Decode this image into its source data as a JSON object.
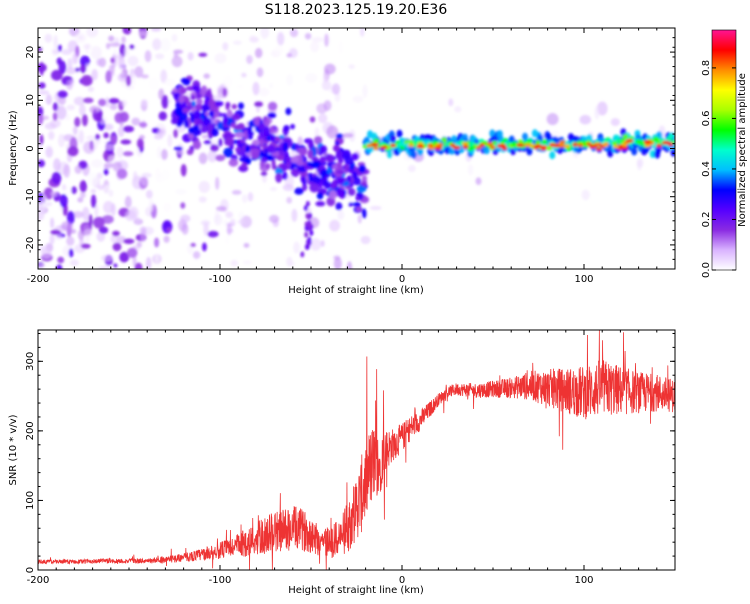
{
  "title": "S118.2023.125.19.20.E36",
  "chart_data": [
    {
      "type": "heatmap",
      "title": "S118.2023.125.19.20.E36",
      "xlabel": "Height of straight line (km)",
      "ylabel": "Frequency (Hz)",
      "xlim": [
        -200,
        150
      ],
      "ylim": [
        -25,
        25
      ],
      "xticks": [
        -200,
        -100,
        0,
        100
      ],
      "yticks": [
        -20,
        -10,
        0,
        10,
        20
      ],
      "colorbar": {
        "label": "Normalized spectral amplitude",
        "range": [
          0,
          0.95
        ],
        "ticks": [
          0,
          0.2,
          0.4,
          0.6,
          0.8
        ],
        "colormap": [
          "#ffffff",
          "#d9b3ff",
          "#8a2be2",
          "#5500ff",
          "#0000ff",
          "#00bfff",
          "#00ffcc",
          "#00ff00",
          "#aaff00",
          "#ffff00",
          "#ff8c00",
          "#ff0000",
          "#ff1493"
        ]
      },
      "description_band": "Dominant frequency near 0 Hz; noisy broadband speckle for heights below about -100 km; descending blob band from about +8 Hz at -115 km to -7 Hz at -30 km; narrow band near 0 Hz from -20 km to 150 km with amplitude peaks above 0.8"
    },
    {
      "type": "line",
      "xlabel": "Height of straight line (km)",
      "ylabel": "SNR (10 * v/v)",
      "xlim": [
        -200,
        150
      ],
      "ylim": [
        0,
        345
      ],
      "xticks": [
        -200,
        -100,
        0,
        100
      ],
      "yticks": [
        0,
        100,
        200,
        300
      ],
      "color": "#ee3333",
      "series": [
        {
          "x": [
            -200,
            -180,
            -160,
            -140,
            -130,
            -120,
            -110,
            -100,
            -90,
            -80,
            -70,
            -60,
            -55,
            -50,
            -45,
            -40,
            -35,
            -30,
            -25,
            -22,
            -18,
            -15,
            -12,
            -10,
            -5,
            0,
            5,
            10,
            15,
            20,
            25,
            30,
            40,
            50,
            60,
            70,
            80,
            90,
            100,
            110,
            120,
            130,
            140,
            150
          ],
          "values": [
            12,
            12,
            13,
            13,
            15,
            18,
            22,
            28,
            35,
            45,
            55,
            60,
            58,
            52,
            42,
            40,
            45,
            60,
            90,
            110,
            140,
            160,
            150,
            170,
            180,
            190,
            205,
            215,
            230,
            245,
            255,
            260,
            258,
            260,
            262,
            265,
            262,
            258,
            255,
            262,
            258,
            255,
            255,
            250
          ],
          "noise_amplitude": [
            5,
            5,
            6,
            6,
            8,
            10,
            15,
            20,
            30,
            40,
            50,
            55,
            50,
            45,
            40,
            40,
            45,
            60,
            80,
            95,
            100,
            90,
            70,
            55,
            40,
            35,
            30,
            25,
            20,
            15,
            15,
            15,
            18,
            20,
            25,
            35,
            45,
            55,
            65,
            70,
            60,
            50,
            45,
            40
          ]
        }
      ]
    }
  ]
}
